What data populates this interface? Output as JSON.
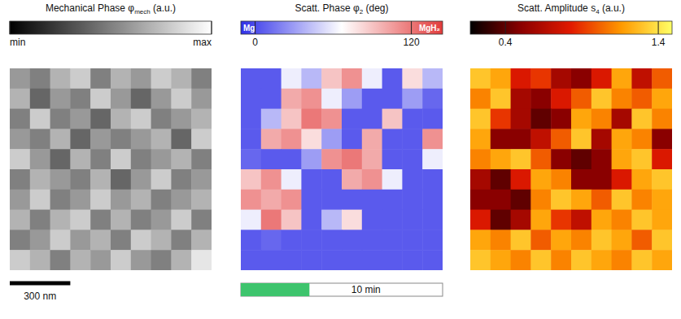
{
  "chart_data": [
    {
      "type": "heatmap",
      "title": [
        "Mechanical Phase φ",
        "mech",
        " (a.u.)"
      ],
      "colorbar": {
        "range": [
          0,
          1
        ],
        "ticks": [
          {
            "value": 0,
            "label": "min"
          },
          {
            "value": 1,
            "label": "max"
          }
        ]
      },
      "cells": [
        [
          0.6,
          0.5,
          0.7,
          0.8,
          0.5,
          0.7,
          0.6,
          0.8,
          0.7,
          0.5
        ],
        [
          0.7,
          0.4,
          0.6,
          0.5,
          0.8,
          0.6,
          0.4,
          0.6,
          0.8,
          0.6
        ],
        [
          0.5,
          0.8,
          0.5,
          0.6,
          0.4,
          0.7,
          0.8,
          0.5,
          0.6,
          0.7
        ],
        [
          0.6,
          0.5,
          0.7,
          0.4,
          0.6,
          0.5,
          0.6,
          0.7,
          0.4,
          0.8
        ],
        [
          0.8,
          0.6,
          0.4,
          0.7,
          0.5,
          0.8,
          0.5,
          0.6,
          0.7,
          0.5
        ],
        [
          0.5,
          0.7,
          0.6,
          0.5,
          0.7,
          0.4,
          0.6,
          0.8,
          0.5,
          0.6
        ],
        [
          0.6,
          0.8,
          0.5,
          0.6,
          0.8,
          0.6,
          0.7,
          0.5,
          0.6,
          0.7
        ],
        [
          0.7,
          0.5,
          0.7,
          0.8,
          0.5,
          0.7,
          0.5,
          0.6,
          0.8,
          0.5
        ],
        [
          0.5,
          0.6,
          0.8,
          0.6,
          0.7,
          0.5,
          0.8,
          0.7,
          0.5,
          0.7
        ],
        [
          0.8,
          0.7,
          0.5,
          0.7,
          0.6,
          0.8,
          0.6,
          0.5,
          0.7,
          0.9
        ]
      ]
    },
    {
      "type": "heatmap",
      "title": [
        "Scatt. Phase φ",
        "2",
        " (deg)"
      ],
      "colorbar": {
        "range": [
          -11,
          144
        ],
        "ticks": [
          0,
          120
        ],
        "end_labels": [
          "Mg",
          "MgH₂"
        ]
      },
      "cells": [
        [
          5,
          5,
          60,
          40,
          90,
          110,
          60,
          5,
          80,
          40
        ],
        [
          5,
          5,
          100,
          110,
          60,
          30,
          5,
          5,
          30,
          10
        ],
        [
          5,
          40,
          90,
          120,
          110,
          5,
          5,
          90,
          5,
          5
        ],
        [
          5,
          100,
          110,
          80,
          30,
          5,
          100,
          5,
          5,
          110
        ],
        [
          10,
          5,
          5,
          30,
          110,
          120,
          100,
          5,
          5,
          60
        ],
        [
          90,
          110,
          60,
          5,
          5,
          100,
          110,
          60,
          5,
          5
        ],
        [
          110,
          100,
          110,
          5,
          5,
          5,
          5,
          5,
          5,
          5
        ],
        [
          60,
          120,
          90,
          5,
          40,
          80,
          5,
          5,
          5,
          5
        ],
        [
          5,
          10,
          5,
          5,
          5,
          5,
          5,
          5,
          5,
          5
        ],
        [
          5,
          5,
          5,
          5,
          5,
          5,
          5,
          5,
          5,
          5
        ]
      ]
    },
    {
      "type": "heatmap",
      "title": [
        "Scatt. Amplitude s",
        "4",
        " (a.u.)"
      ],
      "colorbar": {
        "range": [
          0.17,
          1.49
        ],
        "ticks": [
          0.4,
          1.4
        ]
      },
      "cells": [
        [
          1.3,
          1.2,
          0.8,
          0.9,
          0.6,
          0.5,
          0.8,
          1.2,
          0.7,
          1.0
        ],
        [
          1.1,
          1.3,
          0.6,
          0.5,
          0.8,
          1.0,
          1.3,
          1.1,
          1.0,
          1.2
        ],
        [
          1.3,
          0.9,
          0.6,
          0.4,
          0.5,
          1.2,
          1.1,
          0.6,
          1.3,
          1.1
        ],
        [
          1.2,
          0.5,
          0.5,
          0.7,
          1.0,
          1.3,
          0.6,
          1.2,
          1.1,
          0.5
        ],
        [
          1.1,
          1.2,
          1.3,
          1.0,
          0.5,
          0.4,
          0.5,
          1.2,
          1.3,
          0.8
        ],
        [
          0.6,
          0.4,
          0.8,
          1.2,
          1.1,
          0.5,
          0.5,
          0.8,
          1.2,
          1.3
        ],
        [
          0.5,
          0.5,
          0.4,
          1.1,
          1.3,
          1.2,
          1.0,
          1.3,
          1.1,
          1.2
        ],
        [
          0.8,
          0.4,
          0.6,
          1.2,
          0.9,
          0.7,
          1.2,
          1.1,
          1.3,
          1.2
        ],
        [
          1.2,
          1.1,
          1.3,
          1.0,
          1.2,
          1.1,
          1.3,
          1.2,
          1.0,
          1.3
        ],
        [
          1.3,
          1.2,
          1.1,
          1.3,
          1.1,
          1.3,
          1.2,
          1.1,
          1.3,
          1.2
        ]
      ]
    }
  ],
  "scale_bar": {
    "label": "300 nm",
    "length_nm": 300,
    "field_of_view_nm": 1000
  },
  "time_bar": {
    "label": "10 min",
    "fraction": 0.34
  }
}
